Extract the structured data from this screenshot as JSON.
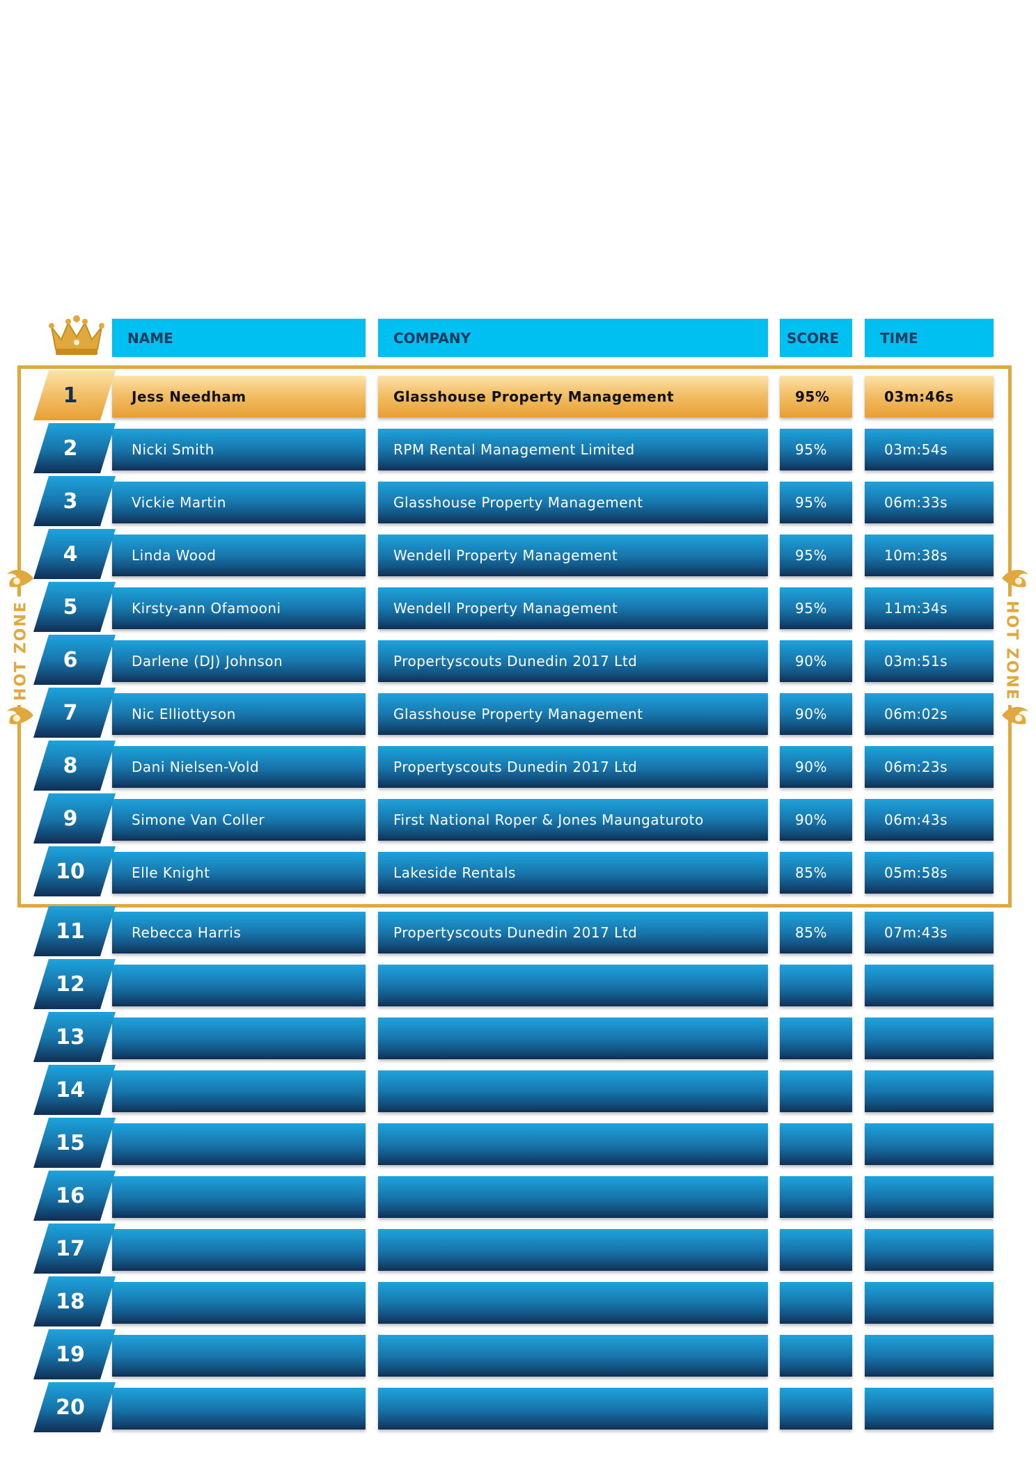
{
  "header": {
    "name": "NAME",
    "company": "COMPANY",
    "score": "SCORE",
    "time": "TIME"
  },
  "hot_zone_label": "HOT ZONE",
  "colors": {
    "header_bg": "#00c0f2",
    "header_text": "#143a5e",
    "gold": "#e0a940",
    "row_blue_top": "#1ea3dc",
    "row_blue_bottom": "#102f55"
  },
  "rows": [
    {
      "rank": "1",
      "name": "Jess Needham",
      "company": "Glasshouse Property Management",
      "score": "95%",
      "time": "03m:46s"
    },
    {
      "rank": "2",
      "name": "Nicki Smith",
      "company": "RPM Rental Management Limited",
      "score": "95%",
      "time": "03m:54s"
    },
    {
      "rank": "3",
      "name": "Vickie Martin",
      "company": "Glasshouse Property Management",
      "score": "95%",
      "time": "06m:33s"
    },
    {
      "rank": "4",
      "name": "Linda Wood",
      "company": "Wendell Property Management",
      "score": "95%",
      "time": "10m:38s"
    },
    {
      "rank": "5",
      "name": "Kirsty-ann Ofamooni",
      "company": "Wendell Property Management",
      "score": "95%",
      "time": "11m:34s"
    },
    {
      "rank": "6",
      "name": "Darlene (DJ) Johnson",
      "company": "Propertyscouts Dunedin 2017 Ltd",
      "score": "90%",
      "time": "03m:51s"
    },
    {
      "rank": "7",
      "name": "Nic Elliottyson",
      "company": "Glasshouse Property Management",
      "score": "90%",
      "time": "06m:02s"
    },
    {
      "rank": "8",
      "name": "Dani Nielsen-Vold",
      "company": "Propertyscouts Dunedin 2017 Ltd",
      "score": "90%",
      "time": "06m:23s"
    },
    {
      "rank": "9",
      "name": "Simone Van Coller",
      "company": "First National Roper & Jones Maungaturoto",
      "score": "90%",
      "time": "06m:43s"
    },
    {
      "rank": "10",
      "name": "Elle Knight",
      "company": "Lakeside Rentals",
      "score": "85%",
      "time": "05m:58s"
    },
    {
      "rank": "11",
      "name": "Rebecca Harris",
      "company": "Propertyscouts Dunedin 2017 Ltd",
      "score": "85%",
      "time": "07m:43s"
    },
    {
      "rank": "12",
      "name": "",
      "company": "",
      "score": "",
      "time": ""
    },
    {
      "rank": "13",
      "name": "",
      "company": "",
      "score": "",
      "time": ""
    },
    {
      "rank": "14",
      "name": "",
      "company": "",
      "score": "",
      "time": ""
    },
    {
      "rank": "15",
      "name": "",
      "company": "",
      "score": "",
      "time": ""
    },
    {
      "rank": "16",
      "name": "",
      "company": "",
      "score": "",
      "time": ""
    },
    {
      "rank": "17",
      "name": "",
      "company": "",
      "score": "",
      "time": ""
    },
    {
      "rank": "18",
      "name": "",
      "company": "",
      "score": "",
      "time": ""
    },
    {
      "rank": "19",
      "name": "",
      "company": "",
      "score": "",
      "time": ""
    },
    {
      "rank": "20",
      "name": "",
      "company": "",
      "score": "",
      "time": ""
    }
  ]
}
